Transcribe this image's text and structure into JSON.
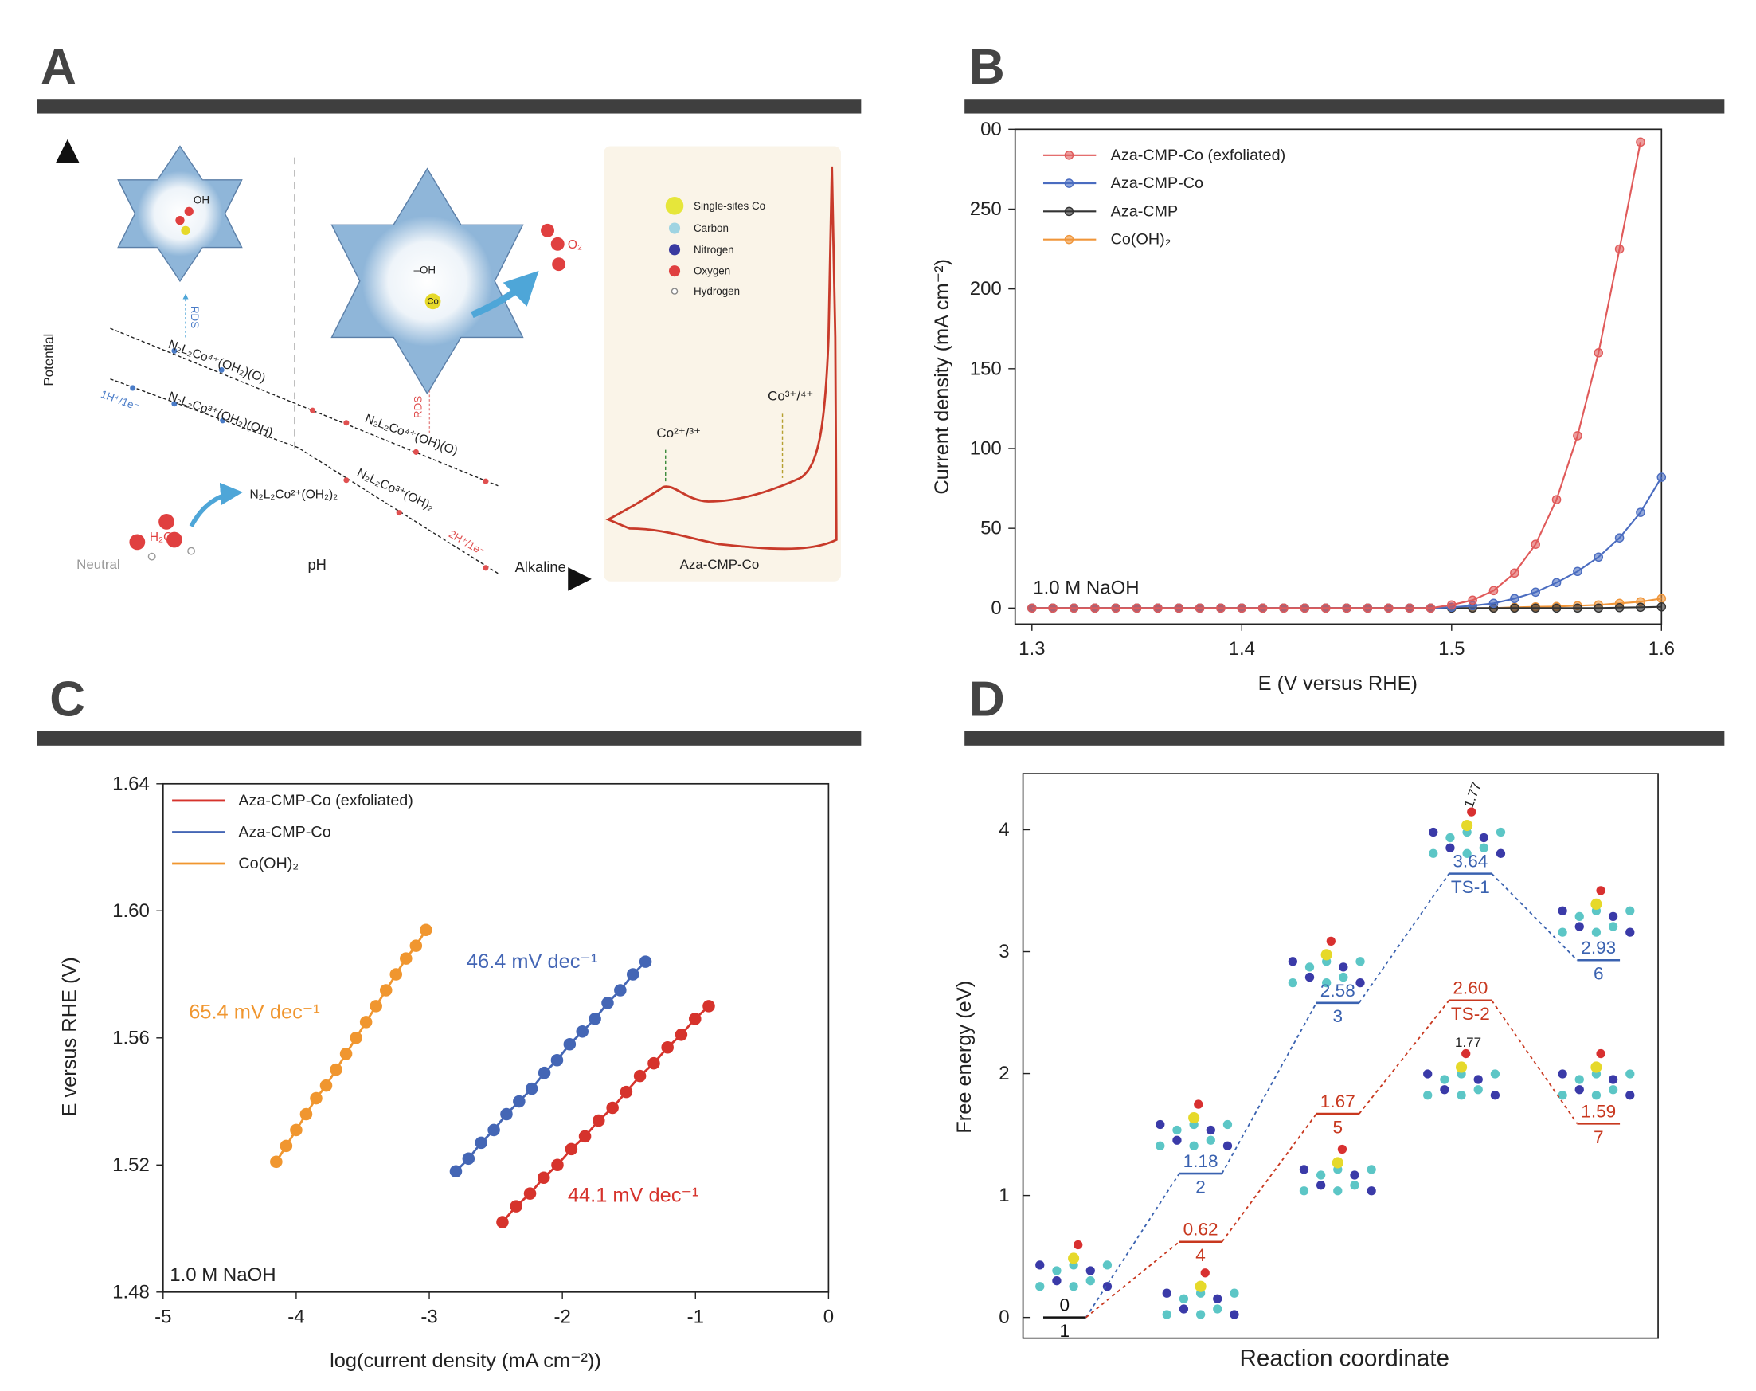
{
  "panel_labels": [
    "A",
    "B",
    "C",
    "D"
  ],
  "schematic": {
    "axis_labels": {
      "y": "Potential",
      "x": "pH",
      "left": "Neutral",
      "right": "Alkaline"
    },
    "states": [
      "N₂L₂Co⁴⁺(OH₂)(O)",
      "N₂L₂Co³⁺(OH₂)(OH)",
      "N₂L₂Co²⁺(OH₂)₂",
      "N₂L₂Co⁴⁺(OH)(O)",
      "N₂L₂Co³⁺(OH)₂"
    ],
    "proton_labels": [
      "1H⁺/1e⁻",
      "2H⁺/1e⁻"
    ],
    "rds": [
      "RDS",
      "RDS"
    ],
    "molecule": {
      "water": "H₂O",
      "oxygen": "O₂",
      "hydroxide": "–OH",
      "hydroxide_top": "OH",
      "cobalt": "Co"
    },
    "legend": [
      "Single-sites Co",
      "Carbon",
      "Nitrogen",
      "Oxygen",
      "Hydrogen"
    ],
    "cv": {
      "peaks": [
        "Co²⁺/³⁺",
        "Co³⁺/⁴⁺"
      ],
      "label": "Aza-CMP-Co"
    }
  },
  "chart_data": [
    {
      "type": "line",
      "xlabel": "E (V versus RHE)",
      "ylabel": "Current density (mA cm⁻²)",
      "annotation": "1.0 M NaOH",
      "legend": "upper left",
      "xlim": [
        1.292,
        1.6
      ],
      "ylim": [
        -10,
        300
      ],
      "xticks": [
        1.3,
        1.4,
        1.5,
        1.6
      ],
      "yticks": [
        0,
        50,
        100,
        150,
        200,
        250,
        {
          "value": 300,
          "label": "00"
        }
      ],
      "x": [
        1.3,
        1.31,
        1.32,
        1.33,
        1.34,
        1.35,
        1.36,
        1.37,
        1.38,
        1.39,
        1.4,
        1.41,
        1.42,
        1.43,
        1.44,
        1.45,
        1.46,
        1.47,
        1.48,
        1.49,
        1.5,
        1.51,
        1.52,
        1.53,
        1.54,
        1.55,
        1.56,
        1.57,
        1.58,
        1.59,
        1.6
      ],
      "series": [
        {
          "name": "Aza-CMP-Co (exfoliated)",
          "color": "#e05a5a",
          "values": [
            0,
            0,
            0,
            0,
            0,
            0,
            0,
            0,
            0,
            0,
            0,
            0,
            0,
            0,
            0,
            0,
            0,
            0,
            0,
            0,
            2,
            5,
            11,
            22,
            40,
            68,
            108,
            160,
            225,
            292,
            null
          ]
        },
        {
          "name": "Aza-CMP-Co",
          "color": "#4a6cc0",
          "values": [
            0,
            0,
            0,
            0,
            0,
            0,
            0,
            0,
            0,
            0,
            0,
            0,
            0,
            0,
            0,
            0,
            0,
            0,
            0,
            0,
            0.5,
            1.5,
            3,
            6,
            10,
            16,
            23,
            32,
            44,
            60,
            82
          ]
        },
        {
          "name": "Aza-CMP",
          "color": "#333333",
          "values": [
            0,
            0,
            0,
            0,
            0,
            0,
            0,
            0,
            0,
            0,
            0,
            0,
            0,
            0,
            0,
            0,
            0,
            0,
            0,
            0,
            0,
            0,
            0,
            0,
            0,
            0,
            0,
            0,
            0.3,
            0.5,
            0.8
          ]
        },
        {
          "name": "Co(OH)₂",
          "color": "#f0963a",
          "values": [
            0,
            0,
            0,
            0,
            0,
            0,
            0,
            0,
            0,
            0,
            0,
            0,
            0,
            0,
            0,
            0,
            0,
            0,
            0,
            0,
            0,
            0,
            0,
            0.5,
            0.8,
            1,
            1.5,
            2,
            3,
            4,
            6
          ]
        }
      ]
    },
    {
      "type": "scatter",
      "xlabel": "log(current density (mA cm⁻²))",
      "ylabel": "E versus RHE (V)",
      "annotation": "1.0 M NaOH",
      "legend": "upper left",
      "xlim": [
        -5,
        0
      ],
      "ylim": [
        1.48,
        1.64
      ],
      "xticks": [
        -5,
        -4,
        -3,
        -2,
        -1,
        0
      ],
      "yticks": [
        1.48,
        1.52,
        1.56,
        {
          "value": 1.6,
          "label": "1.60"
        },
        1.64
      ],
      "series": [
        {
          "name": "Aza-CMP-Co (exfoliated)",
          "color": "#d6332c",
          "slope_label": "44.1 mV dec⁻¹",
          "x": [
            -2.45,
            -2.347,
            -2.243,
            -2.14,
            -2.037,
            -1.933,
            -1.83,
            -1.727,
            -1.623,
            -1.52,
            -1.417,
            -1.313,
            -1.21,
            -1.107,
            -1.003,
            -0.9
          ],
          "values": [
            1.502,
            1.507,
            1.511,
            1.516,
            1.52,
            1.525,
            1.529,
            1.534,
            1.538,
            1.543,
            1.548,
            1.552,
            1.557,
            1.561,
            1.566,
            1.57
          ]
        },
        {
          "name": "Aza-CMP-Co",
          "color": "#4466b5",
          "slope_label": "46.4 mV dec⁻¹",
          "x": [
            -2.8,
            -2.705,
            -2.61,
            -2.515,
            -2.42,
            -2.325,
            -2.23,
            -2.135,
            -2.04,
            -1.945,
            -1.85,
            -1.755,
            -1.66,
            -1.565,
            -1.47,
            -1.375
          ],
          "values": [
            1.518,
            1.522,
            1.527,
            1.531,
            1.536,
            1.54,
            1.544,
            1.549,
            1.553,
            1.558,
            1.562,
            1.566,
            1.571,
            1.575,
            1.58,
            1.584
          ]
        },
        {
          "name": "Co(OH)₂",
          "color": "#f0962f",
          "slope_label": "65.4 mV dec⁻¹",
          "x": [
            -4.15,
            -4.075,
            -4.0,
            -3.925,
            -3.85,
            -3.775,
            -3.7,
            -3.625,
            -3.55,
            -3.475,
            -3.4,
            -3.325,
            -3.25,
            -3.175,
            -3.1,
            -3.025
          ],
          "values": [
            1.521,
            1.526,
            1.531,
            1.536,
            1.541,
            1.545,
            1.55,
            1.555,
            1.56,
            1.565,
            1.57,
            1.575,
            1.58,
            1.585,
            1.589,
            1.594
          ]
        }
      ]
    },
    {
      "type": "energy",
      "xlabel": "Reaction coordinate",
      "ylabel": "Free energy (eV)",
      "ylim": [
        -0.17,
        4.46
      ],
      "yticks": [
        0,
        1,
        2,
        3,
        4
      ],
      "annotations": [
        "1.77",
        "1.77"
      ],
      "series": [
        {
          "color": "#111111",
          "categories": [
            "1"
          ],
          "values": [
            0
          ],
          "value_labels": [
            "0"
          ]
        },
        {
          "color": "#3a62b0",
          "categories": [
            "2",
            "3",
            "TS-1",
            "6"
          ],
          "values": [
            1.18,
            2.58,
            3.64,
            2.93
          ],
          "value_labels": [
            "1.18",
            "2.58",
            "3.64",
            "2.93"
          ]
        },
        {
          "color": "#c8381f",
          "categories": [
            "4",
            "5",
            "TS-2",
            "7"
          ],
          "values": [
            0.62,
            1.67,
            2.6,
            1.59
          ],
          "value_labels": [
            "0.62",
            "1.67",
            "2.60",
            "1.59"
          ]
        }
      ]
    }
  ]
}
